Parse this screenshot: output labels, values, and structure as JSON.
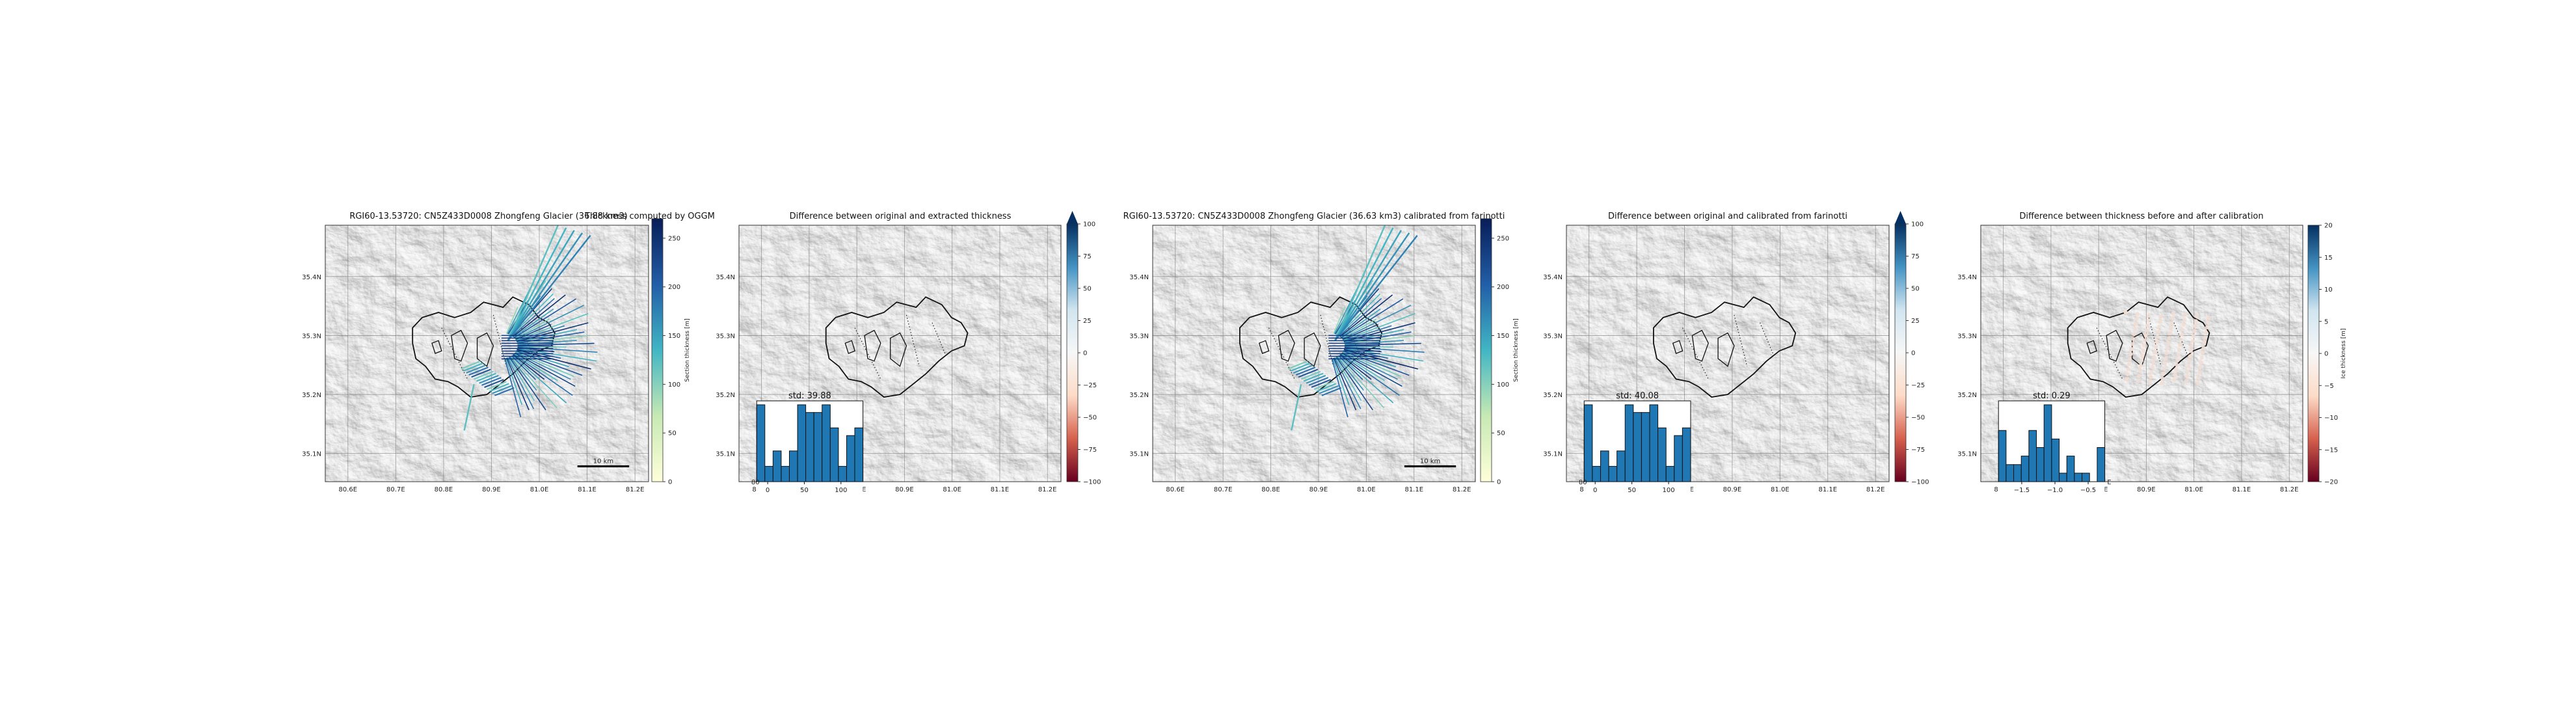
{
  "panels": [
    {
      "title": "RGI60-13.53720: CN5Z433D0008 Zhongfeng Glacier (36.88 km3)",
      "kind": "thickness",
      "scalebar": "10 km",
      "colorbar": {
        "label": "Section thickness [m]",
        "ticks": [
          "0",
          "50",
          "100",
          "150",
          "200",
          "250"
        ],
        "range": [
          0,
          270
        ],
        "cmap": [
          "#ffffd9",
          "#c7e9b4",
          "#41b6c4",
          "#225ea8",
          "#081d58"
        ],
        "extend": false
      }
    },
    {
      "title": "Thickness computed by OGGM",
      "kind": "empty"
    },
    {
      "title": "Difference between original and extracted thickness",
      "kind": "difference",
      "colorbar": {
        "label": "",
        "ticks": [
          "−100",
          "−75",
          "−50",
          "−25",
          "0",
          "25",
          "50",
          "75",
          "100"
        ],
        "range": [
          -100,
          100
        ],
        "cmap": [
          "#67001f",
          "#d6604d",
          "#fddbc7",
          "#f7f7f7",
          "#d1e5f0",
          "#4393c3",
          "#053061"
        ],
        "extend": true
      },
      "inset": {
        "title": "std: 39.88",
        "xticks": [
          "0",
          "50",
          "100"
        ],
        "xrange": [
          -15,
          130
        ],
        "counts": [
          10,
          2,
          4,
          2,
          4,
          10,
          9,
          9,
          10,
          7,
          2,
          6,
          7
        ],
        "partial_left_label": "80"
      }
    },
    {
      "title": "RGI60-13.53720: CN5Z433D0008 Zhongfeng Glacier (36.63 km3) calibrated from farinotti",
      "kind": "thickness",
      "scalebar": "10 km",
      "colorbar": {
        "label": "Section thickness [m]",
        "ticks": [
          "0",
          "50",
          "100",
          "150",
          "200",
          "250"
        ],
        "range": [
          0,
          270
        ],
        "cmap": [
          "#ffffd9",
          "#c7e9b4",
          "#41b6c4",
          "#225ea8",
          "#081d58"
        ],
        "extend": false
      }
    },
    {
      "title": "Difference between original and calibrated from farinotti",
      "kind": "difference",
      "colorbar": {
        "label": "",
        "ticks": [
          "−100",
          "−75",
          "−50",
          "−25",
          "0",
          "25",
          "50",
          "75",
          "100"
        ],
        "range": [
          -100,
          100
        ],
        "cmap": [
          "#67001f",
          "#d6604d",
          "#fddbc7",
          "#f7f7f7",
          "#d1e5f0",
          "#4393c3",
          "#053061"
        ],
        "extend": true
      },
      "inset": {
        "title": "std: 40.08",
        "xticks": [
          "0",
          "50",
          "100"
        ],
        "xrange": [
          -15,
          130
        ],
        "counts": [
          10,
          2,
          4,
          2,
          4,
          10,
          9,
          9,
          10,
          7,
          2,
          6,
          7
        ],
        "partial_left_label": "80"
      }
    },
    {
      "title": "Difference between thickness before and after calibration",
      "kind": "calib",
      "colorbar": {
        "label": "Ice thickness [m]",
        "ticks": [
          "−20",
          "−15",
          "−10",
          "−5",
          "0",
          "5",
          "10",
          "15",
          "20"
        ],
        "range": [
          -20,
          20
        ],
        "cmap": [
          "#67001f",
          "#d6604d",
          "#fddbc7",
          "#f7f7f7",
          "#d1e5f0",
          "#4393c3",
          "#053061"
        ],
        "extend": false
      },
      "inset": {
        "title": "std: 0.29",
        "xticks": [
          "−1.5",
          "−1.0",
          "−0.5"
        ],
        "xrange": [
          -1.85,
          -0.25
        ],
        "counts": [
          6,
          2,
          2,
          3,
          6,
          4,
          9,
          5,
          1,
          3,
          1,
          1,
          0,
          4
        ],
        "partial_left_label": "",
        "partial_right_label": "E"
      }
    }
  ],
  "map": {
    "lon_ticks": [
      "80.6E",
      "80.7E",
      "80.8E",
      "80.9E",
      "81.0E",
      "81.1E",
      "81.2E"
    ],
    "lat_ticks": [
      "35.4N",
      "35.3N",
      "35.2N",
      "35.1N"
    ]
  },
  "chart_data": [
    {
      "type": "histogram",
      "title": "std: 39.88",
      "x_ticks": [
        0,
        50,
        100
      ],
      "xlim": [
        -15,
        130
      ],
      "counts": [
        10,
        2,
        4,
        2,
        4,
        10,
        9,
        9,
        10,
        7,
        2,
        6,
        7
      ]
    },
    {
      "type": "histogram",
      "title": "std: 40.08",
      "x_ticks": [
        0,
        50,
        100
      ],
      "xlim": [
        -15,
        130
      ],
      "counts": [
        10,
        2,
        4,
        2,
        4,
        10,
        9,
        9,
        10,
        7,
        2,
        6,
        7
      ]
    },
    {
      "type": "histogram",
      "title": "std: 0.29",
      "x_ticks": [
        -1.5,
        -1.0,
        -0.5
      ],
      "xlim": [
        -1.85,
        -0.25
      ],
      "counts": [
        6,
        2,
        2,
        3,
        6,
        4,
        9,
        5,
        1,
        3,
        1,
        1,
        0,
        4
      ]
    }
  ]
}
